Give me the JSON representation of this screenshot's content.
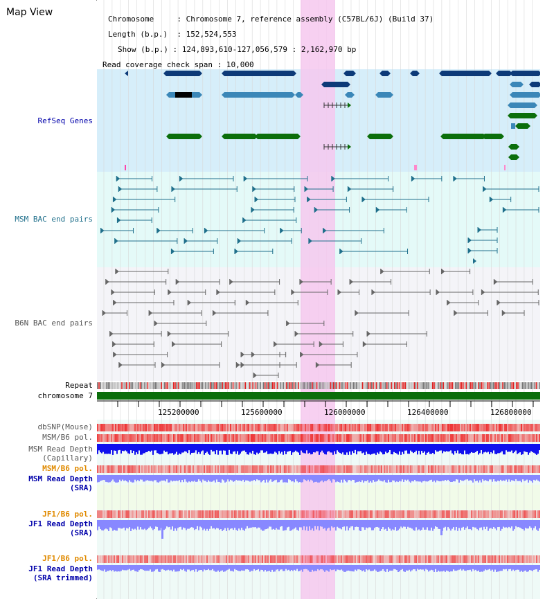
{
  "title": "Map View",
  "header": {
    "chromosome_key": "Chromosome",
    "chromosome_val": "Chromosome 7, reference assembly (C57BL/6J) (Build 37)",
    "length_key": "Length (b.p.)",
    "length_val": "152,524,553",
    "show_key": "Show (b.p.)",
    "show_val": "124,893,610-127,056,579 : 2,162,970 bp",
    "coverage_key": "Read coverage check span",
    "coverage_val": "10,000"
  },
  "tracks": {
    "refseq": "RefSeq Genes",
    "msm_bac": "MSM BAC end pairs",
    "b6n_bac": "B6N BAC end pairs",
    "repeat": "Repeat",
    "chromosome": "chromosome 7",
    "dbsnp": "dbSNP(Mouse)",
    "msm_b6_pol_1": "MSM/B6 pol.",
    "msm_depth_cap_1": "MSM Read Depth",
    "msm_depth_cap_2": "(Capillary)",
    "msm_b6_pol_2": "MSM/B6 pol.",
    "msm_depth_sra_1": "MSM Read Depth",
    "msm_depth_sra_2": "(SRA)",
    "jf1_pol_1": "JF1/B6 pol.",
    "jf1_depth_sra_1": "JF1 Read Depth",
    "jf1_depth_sra_2": "(SRA)",
    "jf1_pol_2": "JF1/B6 pol.",
    "jf1_depth_trim_1": "JF1 Read Depth",
    "jf1_depth_trim_2": "(SRA trimmed)"
  },
  "axis": {
    "ticks": [
      "125200000",
      "125600000",
      "126000000",
      "126400000",
      "126800000"
    ]
  },
  "colors": {
    "highlight": "#f6c8ee",
    "refseq_bg": "#d6eefa",
    "msm_bg": "#e4faf8",
    "b6n_bg": "#f4f4f8",
    "dark_blue": "#0d3a78",
    "mid_blue": "#3b87b8",
    "green": "#0b6e0b",
    "teal": "#1f6f8b",
    "grey": "#666666",
    "track_red": "#ee3333",
    "depth_blue": "#1111ee",
    "depth_lav": "#8888ff",
    "label_orange": "#e08a00",
    "label_navy": "#0000aa"
  }
}
